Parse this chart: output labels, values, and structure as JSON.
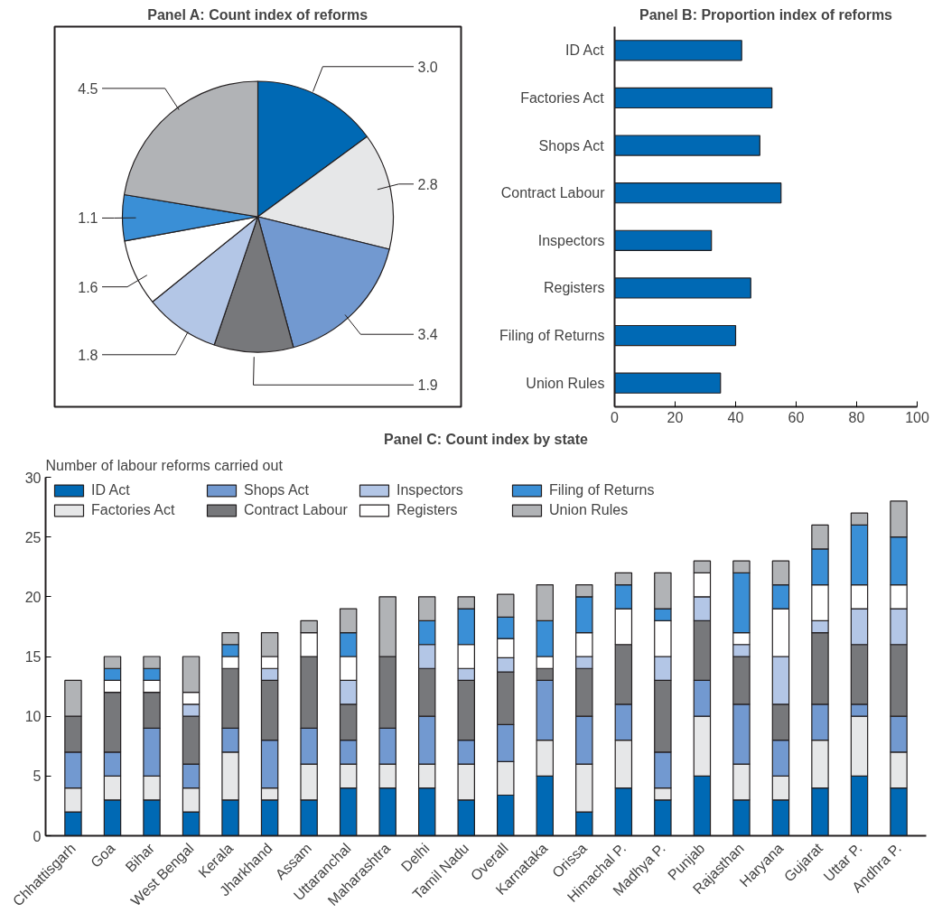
{
  "chart_data": [
    {
      "type": "pie",
      "title": "Panel A: Count index of reforms",
      "categories": [
        null,
        null,
        null,
        null,
        null,
        null,
        null,
        null
      ],
      "values": [
        3.0,
        2.8,
        3.4,
        1.9,
        1.8,
        1.6,
        1.1,
        4.5
      ],
      "colors": [
        "#0069b4",
        "#e6e7e8",
        "#7299d0",
        "#77787b",
        "#b3c6e6",
        "#ffffff",
        "#3a8fd6",
        "#b1b3b6"
      ],
      "value_labels": [
        "3.0",
        "2.8",
        "3.4",
        "1.9",
        "1.8",
        "1.6",
        "1.1",
        "4.5"
      ]
    },
    {
      "type": "bar",
      "orientation": "horizontal",
      "title": "Panel B: Proportion index of reforms",
      "categories": [
        "ID Act",
        "Factories Act",
        "Shops Act",
        "Contract Labour",
        "Inspectors",
        "Registers",
        "Filing of Returns",
        "Union Rules"
      ],
      "values": [
        42,
        52,
        48,
        55,
        32,
        45,
        40,
        35
      ],
      "color": "#0069b4",
      "xlim": [
        0,
        100
      ],
      "xticks": [
        0,
        20,
        40,
        60,
        80,
        100
      ],
      "grid": false
    },
    {
      "type": "bar",
      "stacked": true,
      "title": "Panel C: Count index by state",
      "ylabel": "Number of labour reforms carried out",
      "categories": [
        "Chhattisgarh",
        "Goa",
        "Bihar",
        "West Bengal",
        "Kerala",
        "Jharkhand",
        "Assam",
        "Uttaranchal",
        "Maharashtra",
        "Delhi",
        "Tamil Nadu",
        "Overall",
        "Karnataka",
        "Orissa",
        "Himachal P.",
        "Madhya P.",
        "Punjab",
        "Rajasthan",
        "Haryana",
        "Gujarat",
        "Uttar P.",
        "Andhra P."
      ],
      "ylim": [
        0,
        30
      ],
      "yticks": [
        0,
        5,
        10,
        15,
        20,
        25,
        30
      ],
      "grid": false,
      "legend": "top left",
      "series": [
        {
          "name": "ID Act",
          "color": "#0069b4",
          "values": [
            2,
            3,
            3,
            2,
            3,
            3,
            3,
            4,
            4,
            4,
            3,
            3.4,
            5,
            2,
            4,
            3,
            5,
            3,
            3,
            4,
            5,
            4
          ]
        },
        {
          "name": "Factories Act",
          "color": "#e6e7e8",
          "values": [
            2,
            2,
            2,
            2,
            4,
            1,
            3,
            2,
            2,
            2,
            3,
            2.8,
            3,
            4,
            4,
            1,
            5,
            3,
            2,
            4,
            5,
            3
          ]
        },
        {
          "name": "Shops Act",
          "color": "#7299d0",
          "values": [
            3,
            2,
            4,
            2,
            2,
            4,
            3,
            2,
            3,
            4,
            2,
            3.1,
            5,
            4,
            3,
            3,
            3,
            5,
            3,
            3,
            1,
            3
          ]
        },
        {
          "name": "Contract Labour",
          "color": "#77787b",
          "values": [
            3,
            5,
            3,
            4,
            5,
            5,
            6,
            3,
            6,
            4,
            5,
            4.4,
            1,
            4,
            5,
            6,
            5,
            4,
            3,
            6,
            5,
            6
          ]
        },
        {
          "name": "Inspectors",
          "color": "#b3c6e6",
          "values": [
            0,
            0,
            0,
            1,
            0,
            1,
            0,
            2,
            0,
            2,
            1,
            1.2,
            0,
            1,
            0,
            2,
            2,
            1,
            4,
            1,
            3,
            3
          ]
        },
        {
          "name": "Registers",
          "color": "#ffffff",
          "values": [
            0,
            1,
            1,
            1,
            1,
            1,
            2,
            2,
            0,
            0,
            2,
            1.6,
            1,
            2,
            3,
            3,
            2,
            1,
            4,
            3,
            2,
            2
          ]
        },
        {
          "name": "Filing of Returns",
          "color": "#3a8fd6",
          "values": [
            0,
            1,
            1,
            0,
            1,
            0,
            0,
            2,
            0,
            2,
            3,
            1.8,
            3,
            3,
            2,
            1,
            0,
            5,
            2,
            3,
            5,
            4
          ]
        },
        {
          "name": "Union Rules",
          "color": "#b1b3b6",
          "values": [
            3,
            1,
            1,
            3,
            1,
            2,
            1,
            2,
            5,
            2,
            1,
            1.9,
            3,
            1,
            1,
            3,
            1,
            1,
            2,
            2,
            1,
            3
          ]
        }
      ]
    }
  ]
}
